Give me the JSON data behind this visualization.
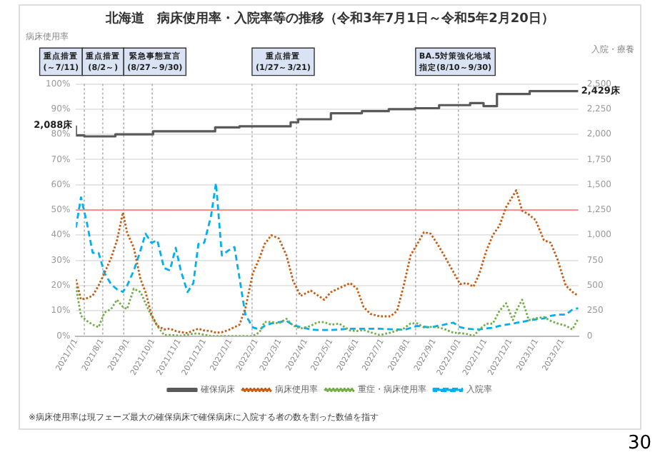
{
  "chart_data": {
    "type": "line",
    "title": "北海道　病床使用率・入院率等の推移（令和3年7月1日～令和5年2月20日）",
    "ylabel": "病床使用率",
    "y2label": "入院・療養",
    "x": [
      "2021-07-01",
      "2021-07-07",
      "2021-07-14",
      "2021-07-21",
      "2021-07-28",
      "2021-08-04",
      "2021-08-12",
      "2021-08-19",
      "2021-08-26",
      "2021-08-31",
      "2021-09-08",
      "2021-09-16",
      "2021-09-22",
      "2021-09-29",
      "2021-10-06",
      "2021-10-14",
      "2021-10-21",
      "2021-10-28",
      "2021-11-03",
      "2021-11-11",
      "2021-11-18",
      "2021-11-24",
      "2021-12-01",
      "2021-12-09",
      "2021-12-15",
      "2021-12-22",
      "2021-12-30",
      "2022-01-06",
      "2022-01-12",
      "2022-01-19",
      "2022-01-28",
      "2022-02-05",
      "2022-02-11",
      "2022-02-19",
      "2022-02-28",
      "2022-03-09",
      "2022-03-17",
      "2022-03-26",
      "2022-04-07",
      "2022-04-15",
      "2022-04-23",
      "2022-05-01",
      "2022-05-11",
      "2022-05-24",
      "2022-06-01",
      "2022-06-09",
      "2022-06-17",
      "2022-06-28",
      "2022-07-11",
      "2022-07-19",
      "2022-07-27",
      "2022-08-04",
      "2022-08-12",
      "2022-08-20",
      "2022-08-28",
      "2022-09-05",
      "2022-09-13",
      "2022-09-24",
      "2022-10-02",
      "2022-10-10",
      "2022-10-18",
      "2022-10-25",
      "2022-11-02",
      "2022-11-10",
      "2022-11-18",
      "2022-11-26",
      "2022-12-04",
      "2022-12-08",
      "2022-12-15",
      "2022-12-23",
      "2022-12-31",
      "2023-01-10",
      "2023-01-18",
      "2023-01-26",
      "2023-02-05",
      "2023-02-13",
      "2023-02-20"
    ],
    "xlim": [
      "2021-07-01",
      "2023-02-20"
    ],
    "xticks": [
      {
        "value": "2021-07-01",
        "label": "2021/7/1"
      },
      {
        "value": "2021-08-01",
        "label": "2021/8/1"
      },
      {
        "value": "2021-09-01",
        "label": "2021/9/1"
      },
      {
        "value": "2021-10-01",
        "label": "2021/10/1"
      },
      {
        "value": "2021-11-01",
        "label": "2021/11/1"
      },
      {
        "value": "2021-12-01",
        "label": "2021/12/1"
      },
      {
        "value": "2022-01-01",
        "label": "2022/1/1"
      },
      {
        "value": "2022-02-01",
        "label": "2022/2/1"
      },
      {
        "value": "2022-03-01",
        "label": "2022/3/1"
      },
      {
        "value": "2022-04-01",
        "label": "2022/4/1"
      },
      {
        "value": "2022-05-01",
        "label": "2022/5/1"
      },
      {
        "value": "2022-06-01",
        "label": "2022/6/1"
      },
      {
        "value": "2022-07-01",
        "label": "2022/7/1"
      },
      {
        "value": "2022-08-01",
        "label": "2022/8/1"
      },
      {
        "value": "2022-09-01",
        "label": "2022/9/1"
      },
      {
        "value": "2022-10-01",
        "label": "2022/10/1"
      },
      {
        "value": "2022-11-01",
        "label": "2022/11/1"
      },
      {
        "value": "2022-12-01",
        "label": "2022/12/1"
      },
      {
        "value": "2023-01-01",
        "label": "2023/1/1"
      },
      {
        "value": "2023-02-01",
        "label": "2023/2/1"
      }
    ],
    "ylim": [
      0,
      100
    ],
    "yticks": [
      {
        "value": 0,
        "label": "0%"
      },
      {
        "value": 10,
        "label": "10%"
      },
      {
        "value": 20,
        "label": "20%"
      },
      {
        "value": 30,
        "label": "30%"
      },
      {
        "value": 40,
        "label": "40%"
      },
      {
        "value": 50,
        "label": "50%"
      },
      {
        "value": 60,
        "label": "60%"
      },
      {
        "value": 70,
        "label": "70%"
      },
      {
        "value": 80,
        "label": "80%"
      },
      {
        "value": 90,
        "label": "90%"
      },
      {
        "value": 100,
        "label": "100%"
      }
    ],
    "y2lim": [
      0,
      2500
    ],
    "y2ticks": [
      0,
      250,
      500,
      750,
      {
        "value": 1000,
        "label": "1,000"
      },
      {
        "value": 1250,
        "label": "1,250"
      },
      {
        "value": 1500,
        "label": "1,500"
      },
      {
        "value": 1750,
        "label": "1,750"
      },
      {
        "value": 2000,
        "label": "2,000"
      },
      {
        "value": 2250,
        "label": "2,250"
      },
      {
        "value": 2500,
        "label": "2,500"
      }
    ],
    "series": [
      {
        "name": "確保病床",
        "type": "step",
        "axis": "y2",
        "color": "#595959",
        "line_style": "solid",
        "x": [
          "2021-07-01",
          "2021-07-11",
          "2021-08-17",
          "2021-10-01",
          "2021-12-14",
          "2022-01-12",
          "2022-03-14",
          "2022-03-23",
          "2022-05-01",
          "2022-06-07",
          "2022-07-09",
          "2022-08-09",
          "2022-09-07",
          "2022-10-14",
          "2022-10-30",
          "2022-11-15",
          "2022-12-24",
          "2023-02-02",
          "2023-02-20"
        ],
        "values": [
          2088,
          1990,
          1980,
          2000,
          2030,
          2070,
          2080,
          2120,
          2150,
          2210,
          2230,
          2250,
          2260,
          2290,
          2310,
          2280,
          2400,
          2429,
          2429
        ],
        "value_labels": [
          "2,088床",
          null,
          null,
          null,
          null,
          null,
          null,
          null,
          null,
          null,
          null,
          null,
          null,
          null,
          null,
          null,
          null,
          null,
          "2,429床"
        ]
      },
      {
        "name": "病床使用率",
        "color": "#c55a11",
        "line_style": "dotted",
        "values": [
          22.5,
          14.5,
          15,
          16,
          20,
          25,
          31,
          38,
          49,
          41,
          35,
          22.5,
          17.4,
          8.5,
          4.1,
          2.6,
          2.9,
          2,
          1.5,
          1.2,
          2.2,
          2.9,
          2.2,
          1.9,
          1.3,
          1.5,
          2.4,
          3.5,
          4.5,
          11,
          25,
          31,
          36.5,
          40,
          38.7,
          32,
          21.8,
          15.9,
          18,
          16.2,
          14.4,
          17.4,
          19,
          21,
          18.8,
          11.5,
          8.8,
          7.8,
          7.8,
          10,
          20.3,
          32,
          36.5,
          41.2,
          40.6,
          36.5,
          32,
          25.4,
          20.6,
          21,
          19.6,
          24.7,
          33.5,
          40,
          43.8,
          51.2,
          55.6,
          57.8,
          49.7,
          48.2,
          46,
          38,
          37,
          30.6,
          20,
          17.5,
          15.9
        ]
      },
      {
        "name": "重症・病床使用率",
        "color": "#70ad47",
        "line_style": "dotted",
        "values": [
          19.6,
          8,
          6,
          4.5,
          3.5,
          9.3,
          10.7,
          14.4,
          11.5,
          10.7,
          18.8,
          17.4,
          13,
          8,
          4,
          0.4,
          0.4,
          0.3,
          0.1,
          0.5,
          1,
          1,
          0.5,
          0,
          0,
          0,
          0,
          0,
          0,
          0,
          0,
          1.5,
          5.6,
          5.6,
          5,
          6.8,
          4.1,
          3,
          4,
          5.5,
          5.5,
          4.5,
          4.9,
          2.2,
          2,
          2.4,
          1.5,
          0.4,
          1.3,
          2.2,
          3,
          5,
          5,
          3.4,
          3.6,
          3.5,
          2.8,
          1.3,
          1.2,
          0.8,
          0,
          2.5,
          4.9,
          4.9,
          10,
          13,
          6.3,
          10,
          14.4,
          6.3,
          7,
          7.5,
          6,
          5,
          4.1,
          2.6,
          7
        ]
      },
      {
        "name": "入院率",
        "color": "#00b0f0",
        "line_style": "dashed",
        "values": [
          43,
          55,
          45,
          33,
          33,
          25,
          20.5,
          18.5,
          17.5,
          20,
          26,
          34,
          40.6,
          37,
          38,
          27,
          26,
          35,
          26,
          17.4,
          21,
          36.5,
          37,
          47.5,
          60.7,
          32,
          34,
          35.3,
          23,
          8.5,
          3.4,
          2.6,
          4,
          5,
          5.5,
          6,
          4.3,
          3.5,
          2.6,
          2.4,
          2.4,
          2.4,
          2.6,
          2.9,
          2.9,
          2.9,
          2.9,
          2.9,
          2.7,
          2.6,
          2.4,
          3.2,
          4,
          3.7,
          3.4,
          4,
          4.5,
          5.3,
          3.5,
          2.9,
          2.7,
          2.6,
          3,
          3.3,
          4,
          4.5,
          4.9,
          5.2,
          5.6,
          6.2,
          6.6,
          7,
          8,
          8.5,
          8.5,
          10.5,
          11
        ]
      }
    ],
    "ref_lines": [
      {
        "axis": "y",
        "value": 50,
        "label": null,
        "color": "#ff8080"
      },
      {
        "axis": "x",
        "value": "2021-07-11",
        "label": "重点措置(～7/11)",
        "color": "#a6a6a6",
        "line_style": "dotted"
      },
      {
        "axis": "x",
        "value": "2021-08-02",
        "label": "重点措置(8/2～)",
        "color": "#a6a6a6",
        "line_style": "dotted"
      },
      {
        "axis": "x",
        "value": "2021-08-27",
        "label": "緊急事態宣言(8/27～9/30)",
        "color": "#a6a6a6",
        "line_style": "dotted"
      },
      {
        "axis": "x",
        "value": "2021-09-30",
        "label": null,
        "color": "#a6a6a6",
        "line_style": "dotted"
      },
      {
        "axis": "x",
        "value": "2022-01-27",
        "label": "重点措置(1/27～3/21)",
        "color": "#a6a6a6",
        "line_style": "dotted"
      },
      {
        "axis": "x",
        "value": "2022-03-21",
        "label": null,
        "color": "#a6a6a6",
        "line_style": "dotted"
      },
      {
        "axis": "x",
        "value": "2022-08-10",
        "label": "BA.5対策強化地域指定(8/10～9/30)",
        "color": "#a6a6a6",
        "line_style": "dotted"
      },
      {
        "axis": "x",
        "value": "2022-09-30",
        "label": null,
        "color": "#a6a6a6",
        "line_style": "dotted"
      }
    ],
    "grid": "y",
    "legend": "bottom",
    "marker": "none",
    "annotations": [
      "※病床使用率は現フェーズ最大の確保病床で確保病床に入院する者の数を割った数値を指す",
      "30"
    ]
  }
}
